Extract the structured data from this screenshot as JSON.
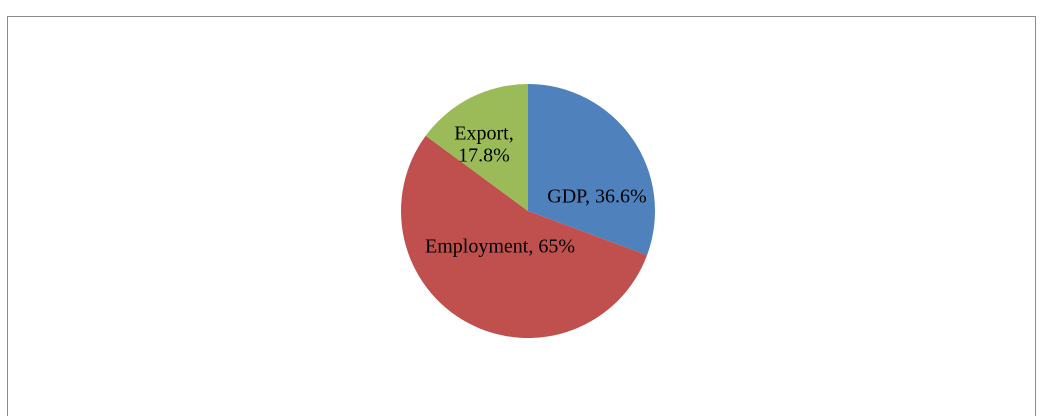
{
  "chart_data": {
    "type": "pie",
    "title": "",
    "categories": [
      "GDP",
      "Employment",
      "Export"
    ],
    "values": [
      36.6,
      65,
      17.8
    ],
    "labels": [
      "GDP, 36.6%",
      "Employment, 65%",
      "Export, 17.8%"
    ],
    "label_lines": [
      [
        "GDP, 36.6%"
      ],
      [
        "Employment, 65%"
      ],
      [
        "Export,",
        "17.8%"
      ]
    ],
    "colors": [
      "#4f81bd",
      "#c0504d",
      "#9bbb59"
    ],
    "legend": "none"
  }
}
